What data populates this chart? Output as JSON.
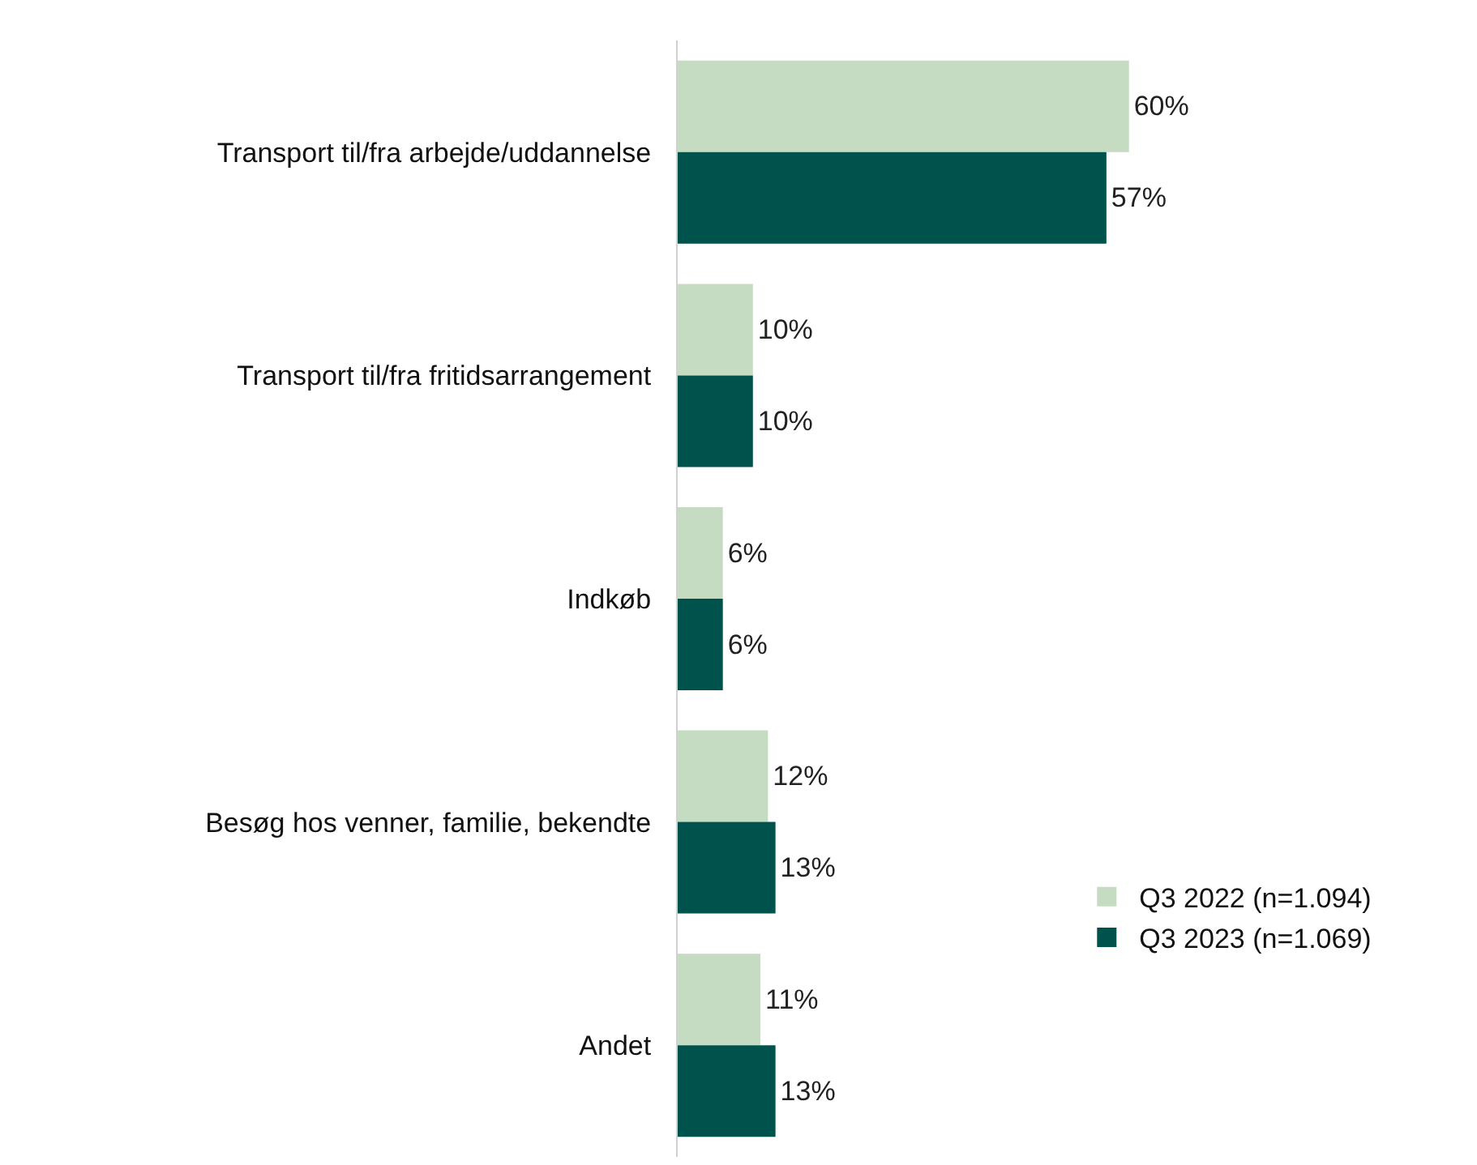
{
  "chart_data": {
    "type": "bar",
    "orientation": "horizontal",
    "categories": [
      "Transport til/fra arbejde/uddannelse",
      "Transport til/fra fritidsarrangement",
      "Indkøb",
      "Besøg hos venner, familie, bekendte",
      "Andet"
    ],
    "series": [
      {
        "name": "Q3 2022 (n=1.094)",
        "color": "#c5dcc2",
        "values": [
          60,
          10,
          6,
          12,
          11
        ],
        "value_labels": [
          "60%",
          "10%",
          "6%",
          "12%",
          "11%"
        ]
      },
      {
        "name": "Q3 2023 (n=1.069)",
        "color": "#00524c",
        "values": [
          57,
          10,
          6,
          13,
          13
        ],
        "value_labels": [
          "57%",
          "10%",
          "6%",
          "13%",
          "13%"
        ]
      }
    ],
    "tick_labels": "y",
    "legend": "bottom right"
  }
}
